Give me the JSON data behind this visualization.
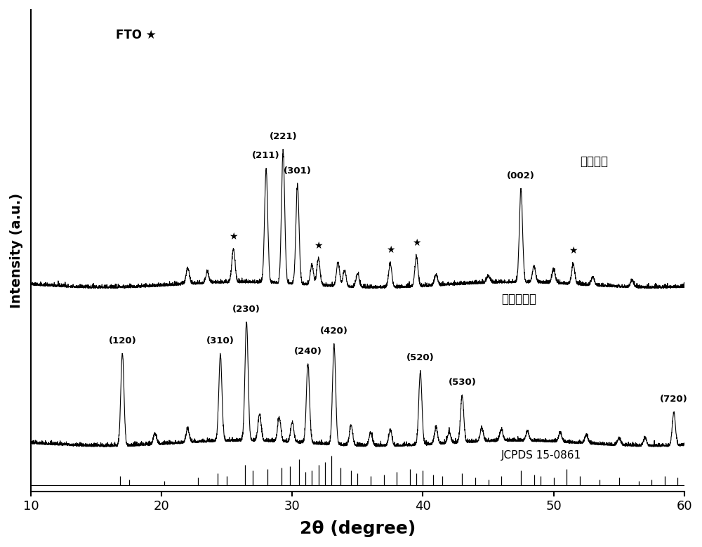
{
  "title": "",
  "xlabel": "2θ (degree)",
  "ylabel": "Intensity (a.u.)",
  "xlim": [
    10,
    60
  ],
  "xticklabels": [
    "10",
    "20",
    "30",
    "40",
    "50",
    "60"
  ],
  "xticks": [
    10,
    20,
    30,
    40,
    50,
    60
  ],
  "background_color": "#ffffff",
  "line_color": "#000000",
  "fto_label": "FTO ★",
  "label_top": "衬底掃杂",
  "label_bottom": "衬底未掃杂",
  "jcpds_label": "JCPDS 15-0861",
  "top_stars": [
    25.5,
    32.0,
    37.5,
    39.5,
    51.5
  ],
  "jcpds_lines": [
    16.8,
    17.5,
    20.2,
    22.8,
    24.3,
    25.0,
    26.4,
    27.0,
    28.1,
    29.2,
    29.8,
    30.5,
    31.0,
    31.5,
    32.0,
    32.5,
    33.0,
    33.7,
    34.5,
    35.0,
    36.0,
    37.0,
    38.0,
    39.0,
    39.5,
    40.0,
    40.8,
    41.5,
    43.0,
    44.0,
    45.0,
    46.0,
    47.5,
    48.5,
    49.0,
    50.0,
    51.0,
    52.0,
    53.5,
    55.0,
    56.5,
    57.5,
    58.5,
    59.5
  ],
  "jcpds_heights": [
    0.3,
    0.2,
    0.15,
    0.25,
    0.4,
    0.3,
    0.7,
    0.5,
    0.55,
    0.6,
    0.65,
    0.9,
    0.45,
    0.5,
    0.7,
    0.8,
    1.0,
    0.6,
    0.5,
    0.4,
    0.3,
    0.35,
    0.45,
    0.55,
    0.4,
    0.5,
    0.35,
    0.3,
    0.4,
    0.25,
    0.2,
    0.3,
    0.5,
    0.35,
    0.3,
    0.25,
    0.55,
    0.3,
    0.2,
    0.25,
    0.15,
    0.2,
    0.3,
    0.25
  ]
}
